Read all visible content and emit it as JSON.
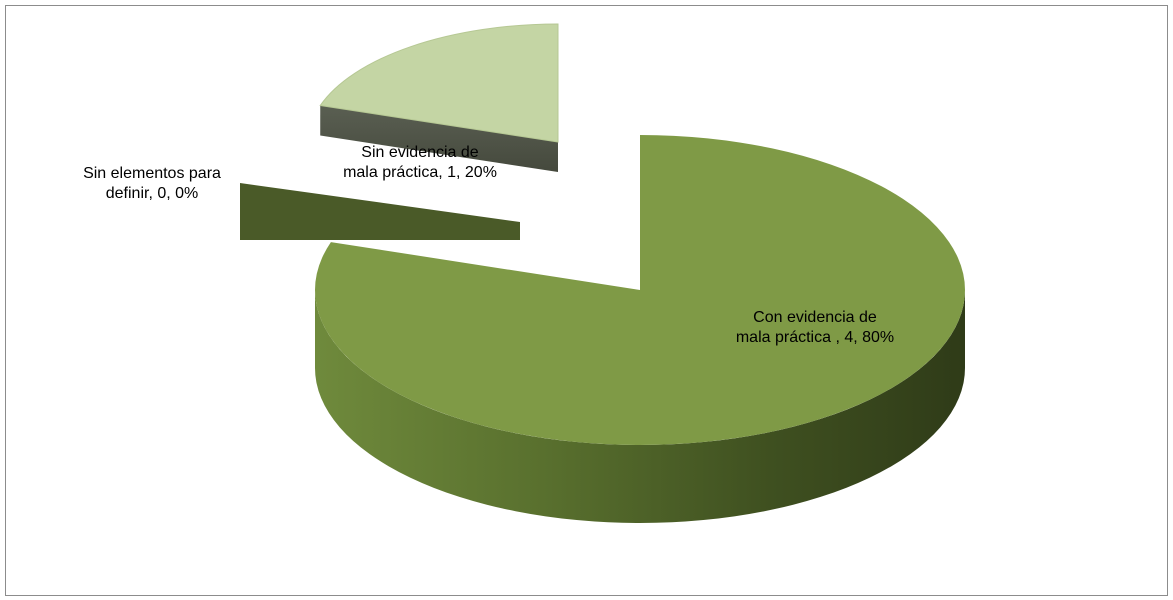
{
  "chart_data": {
    "type": "pie",
    "title": "",
    "slices": [
      {
        "name": "Con evidencia de mala práctica",
        "value": 4,
        "percent": "80%",
        "label_lines": [
          "Con evidencia de",
          "mala práctica , 4, 80%"
        ],
        "color": "#7f9a46",
        "exploded": false
      },
      {
        "name": "Sin elementos para definir",
        "value": 0,
        "percent": "0%",
        "label_lines": [
          "Sin elementos para",
          "definir, 0, 0%"
        ],
        "color": "#4a5a28",
        "exploded": true
      },
      {
        "name": "Sin evidencia de mala práctica",
        "value": 1,
        "percent": "20%",
        "label_lines": [
          "Sin evidencia de",
          "mala práctica, 1, 20%"
        ],
        "color": "#c4d5a4",
        "exploded": true
      }
    ],
    "legend": "none",
    "style": "3d-exploded-pie"
  }
}
